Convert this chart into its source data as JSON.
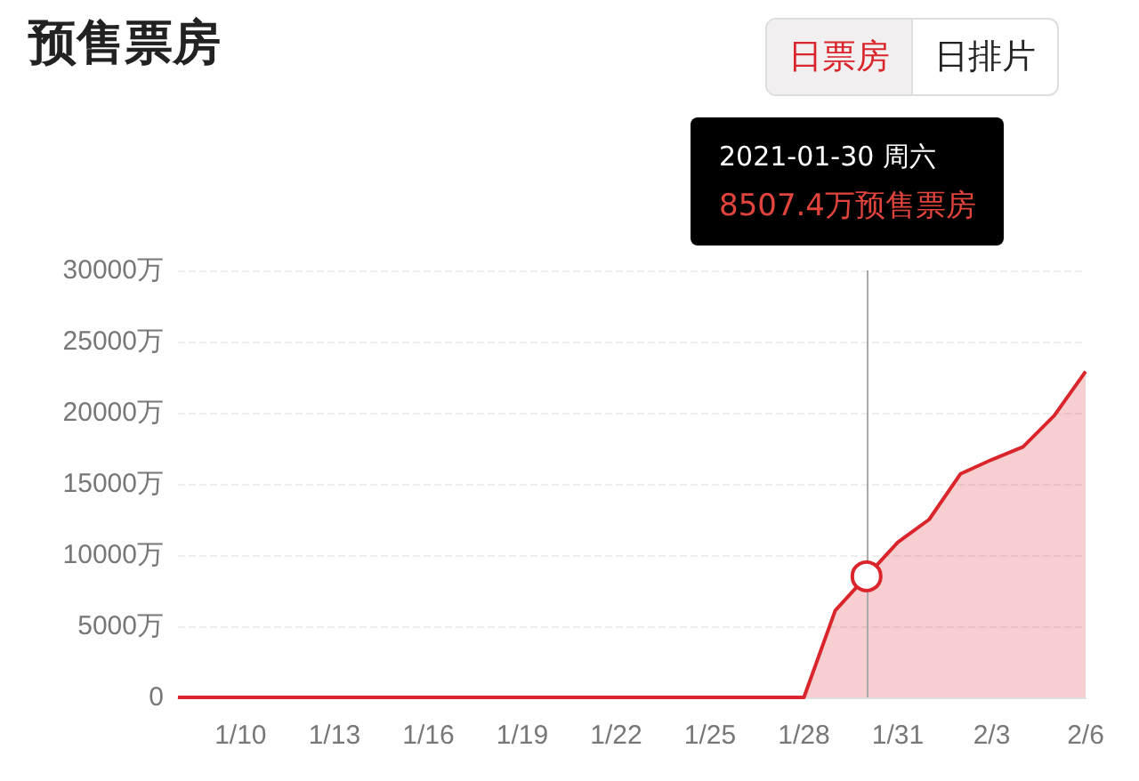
{
  "chart_data": {
    "type": "area",
    "title": "预售票房",
    "annotations": [
      "日票房",
      "日排片",
      "2021-01-30 周六",
      "8507.4万预售票房"
    ],
    "x": [
      "2021-01-08",
      "2021-01-09",
      "2021-01-10",
      "2021-01-11",
      "2021-01-12",
      "2021-01-13",
      "2021-01-14",
      "2021-01-15",
      "2021-01-16",
      "2021-01-17",
      "2021-01-18",
      "2021-01-19",
      "2021-01-20",
      "2021-01-21",
      "2021-01-22",
      "2021-01-23",
      "2021-01-24",
      "2021-01-25",
      "2021-01-26",
      "2021-01-27",
      "2021-01-28",
      "2021-01-29",
      "2021-01-30",
      "2021-01-31",
      "2021-02-01",
      "2021-02-02",
      "2021-02-03",
      "2021-02-04",
      "2021-02-05",
      "2021-02-06"
    ],
    "series": [
      {
        "color": "#d9252b",
        "values": [
          0,
          0,
          0,
          0,
          0,
          0,
          0,
          0,
          0,
          0,
          0,
          0,
          0,
          0,
          0,
          0,
          0,
          0,
          0,
          0,
          0,
          6100,
          8507.4,
          10900,
          12500,
          15700,
          16700,
          17600,
          19800,
          22900
        ]
      }
    ],
    "xlim": [
      "2021-01-08",
      "2021-02-06"
    ],
    "xticks": [
      {
        "value": "2021-01-10",
        "label": "1/10"
      },
      {
        "value": "2021-01-13",
        "label": "1/13"
      },
      {
        "value": "2021-01-16",
        "label": "1/16"
      },
      {
        "value": "2021-01-19",
        "label": "1/19"
      },
      {
        "value": "2021-01-22",
        "label": "1/22"
      },
      {
        "value": "2021-01-25",
        "label": "1/25"
      },
      {
        "value": "2021-01-28",
        "label": "1/28"
      },
      {
        "value": "2021-01-31",
        "label": "1/31"
      },
      {
        "value": "2021-02-03",
        "label": "2/3"
      },
      {
        "value": "2021-02-06",
        "label": "2/6"
      }
    ],
    "ylim": [
      0,
      30000
    ],
    "yticks": [
      0,
      {
        "value": 5000,
        "label": "5000万"
      },
      {
        "value": 10000,
        "label": "10000万"
      },
      {
        "value": 15000,
        "label": "15000万"
      },
      {
        "value": 20000,
        "label": "20000万"
      },
      {
        "value": 25000,
        "label": "25000万"
      },
      {
        "value": 30000,
        "label": "30000万"
      }
    ],
    "ref_lines": [
      {
        "axis": "x",
        "value": "2021-01-30",
        "label": null,
        "color": "#aaaaaa"
      }
    ],
    "grid": "y",
    "marker": "none",
    "line_style": "solid"
  }
}
